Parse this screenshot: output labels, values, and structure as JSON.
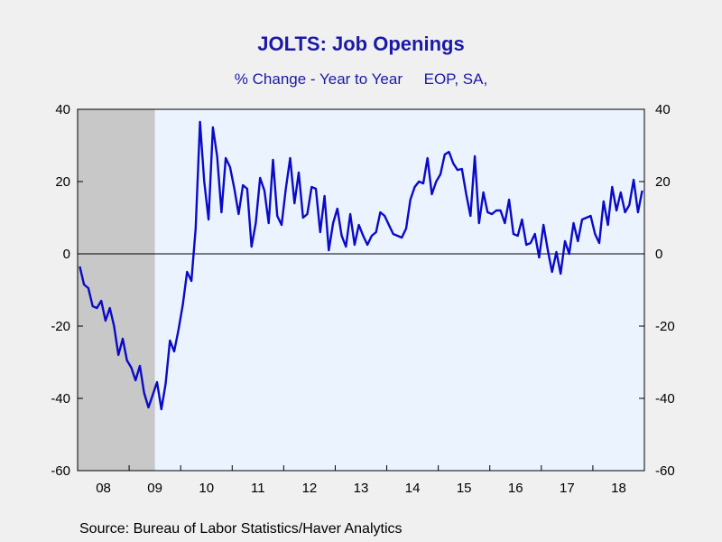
{
  "chart_data": {
    "type": "line",
    "title": "JOLTS: Job Openings",
    "subtitle": "% Change - Year to Year     EOP, SA,",
    "source": "Source:  Bureau of Labor Statistics/Haver Analytics",
    "ylim": [
      -60,
      40
    ],
    "yticks": [
      "40",
      "20",
      "0",
      "-20",
      "-40",
      "-60"
    ],
    "ytick_values": [
      40,
      20,
      0,
      -20,
      -40,
      -60
    ],
    "xlabels": [
      "08",
      "09",
      "10",
      "11",
      "12",
      "13",
      "14",
      "15",
      "16",
      "17",
      "18"
    ],
    "x_start": "2008-01",
    "x_end": "2018-12",
    "recession": {
      "start": "2008-01",
      "end": "2009-06"
    },
    "zero_line": true,
    "colors": {
      "line": "#0a0ac8",
      "plot_bg": "#eaf3fe",
      "recession": "#c8c8c8",
      "text_title": "#1a1aa6"
    },
    "series": [
      {
        "x": [
          "2008-01",
          "2008-02",
          "2008-03",
          "2008-04",
          "2008-05",
          "2008-06",
          "2008-07",
          "2008-08",
          "2008-09",
          "2008-10",
          "2008-11",
          "2008-12",
          "2009-01",
          "2009-02",
          "2009-03",
          "2009-04",
          "2009-05",
          "2009-06",
          "2009-07",
          "2009-08",
          "2009-09",
          "2009-10",
          "2009-11",
          "2009-12",
          "2010-01",
          "2010-02",
          "2010-03",
          "2010-04",
          "2010-05",
          "2010-06",
          "2010-07",
          "2010-08",
          "2010-09",
          "2010-10",
          "2010-11",
          "2010-12",
          "2011-01",
          "2011-02",
          "2011-03",
          "2011-04",
          "2011-05",
          "2011-06",
          "2011-07",
          "2011-08",
          "2011-09",
          "2011-10",
          "2011-11",
          "2011-12",
          "2012-01",
          "2012-02",
          "2012-03",
          "2012-04",
          "2012-05",
          "2012-06",
          "2012-07",
          "2012-08",
          "2012-09",
          "2012-10",
          "2012-11",
          "2012-12",
          "2013-01",
          "2013-02",
          "2013-03",
          "2013-04",
          "2013-05",
          "2013-06",
          "2013-07",
          "2013-08",
          "2013-09",
          "2013-10",
          "2013-11",
          "2013-12",
          "2014-01",
          "2014-02",
          "2014-03",
          "2014-04",
          "2014-05",
          "2014-06",
          "2014-07",
          "2014-08",
          "2014-09",
          "2014-10",
          "2014-11",
          "2014-12",
          "2015-01",
          "2015-02",
          "2015-03",
          "2015-04",
          "2015-05",
          "2015-06",
          "2015-07",
          "2015-08",
          "2015-09",
          "2015-10",
          "2015-11",
          "2015-12",
          "2016-01",
          "2016-02",
          "2016-03",
          "2016-04",
          "2016-05",
          "2016-06",
          "2016-07",
          "2016-08",
          "2016-09",
          "2016-10",
          "2016-11",
          "2016-12",
          "2017-01",
          "2017-02",
          "2017-03",
          "2017-04",
          "2017-05",
          "2017-06",
          "2017-07",
          "2017-08",
          "2017-09",
          "2017-10",
          "2017-11",
          "2017-12",
          "2018-01",
          "2018-02",
          "2018-03",
          "2018-04",
          "2018-05",
          "2018-06",
          "2018-07",
          "2018-08",
          "2018-09",
          "2018-10",
          "2018-11",
          "2018-12"
        ],
        "values": [
          -3.5,
          -8.5,
          -9.5,
          -14.5,
          -15,
          -13,
          -18.5,
          -15,
          -20,
          -28,
          -23.5,
          -29.5,
          -31.5,
          -35,
          -31,
          -38.5,
          -42.5,
          -39,
          -35.5,
          -43,
          -36,
          -24,
          -27,
          -21,
          -14,
          -5,
          -7.5,
          7,
          36.5,
          20,
          9.5,
          35,
          27,
          11.5,
          26.5,
          24,
          18,
          11,
          19,
          18,
          2,
          8.5,
          21,
          17.5,
          8.5,
          26,
          10.5,
          8,
          18,
          26.5,
          14,
          22.5,
          10,
          11,
          18.5,
          18,
          6,
          16,
          1,
          8.5,
          12.5,
          5,
          2,
          11,
          2.5,
          8,
          5,
          2.5,
          5,
          6,
          11.5,
          10.5,
          8,
          5.5,
          5,
          4.5,
          7,
          15,
          18.5,
          20,
          19.5,
          26.5,
          16.5,
          20,
          22,
          27.5,
          28.2,
          25,
          23.2,
          23.5,
          16.5,
          10.5,
          27,
          8.5,
          17,
          11.5,
          11,
          12,
          12,
          8.5,
          15,
          5.5,
          5,
          9.5,
          2.5,
          3,
          5.5,
          -1,
          8,
          1,
          -5,
          0.5,
          -5.5,
          3.5,
          0,
          8.5,
          3.5,
          9.5,
          10,
          10.5,
          5.5,
          3,
          14.5,
          8,
          18.5,
          12,
          17,
          11.5,
          13.5,
          20.5,
          11.5,
          17.5
        ]
      }
    ]
  }
}
